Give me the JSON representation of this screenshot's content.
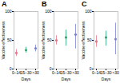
{
  "chart_data": [
    {
      "type": "scatter",
      "title": "A",
      "x_label": "Days",
      "y_label": "Vaccine effectiveness",
      "categories": [
        "0–14",
        "15–30",
        ">30"
      ],
      "values": [
        28,
        33,
        36
      ],
      "error_low": [
        22,
        28,
        30
      ],
      "error_high": [
        34,
        38,
        42
      ],
      "colors": [
        "#e8738a",
        "#2aa876",
        "#7b7fd4"
      ],
      "ylim": [
        0,
        100
      ],
      "yticks": [
        0,
        50,
        100
      ]
    },
    {
      "type": "scatter",
      "title": "B",
      "x_label": "Days",
      "y_label": "Vaccine effectiveness",
      "categories": [
        "0–14",
        "15–30",
        ">30"
      ],
      "values": [
        50,
        55,
        60
      ],
      "error_low": [
        42,
        40,
        35
      ],
      "error_high": [
        58,
        68,
        78
      ],
      "colors": [
        "#e8738a",
        "#2aa876",
        "#7b7fd4"
      ],
      "ylim": [
        0,
        100
      ],
      "yticks": [
        0,
        50,
        100
      ]
    },
    {
      "type": "scatter",
      "title": "C",
      "x_label": "Days",
      "y_label": "Vaccine effectiveness",
      "categories": [
        "0–14",
        "15–30",
        ">30"
      ],
      "values": [
        48,
        55,
        52
      ],
      "error_low": [
        38,
        40,
        25
      ],
      "error_high": [
        58,
        66,
        80
      ],
      "colors": [
        "#e8738a",
        "#2aa876",
        "#7b7fd4"
      ],
      "ylim": [
        0,
        100
      ],
      "yticks": [
        0,
        50,
        100
      ]
    }
  ]
}
